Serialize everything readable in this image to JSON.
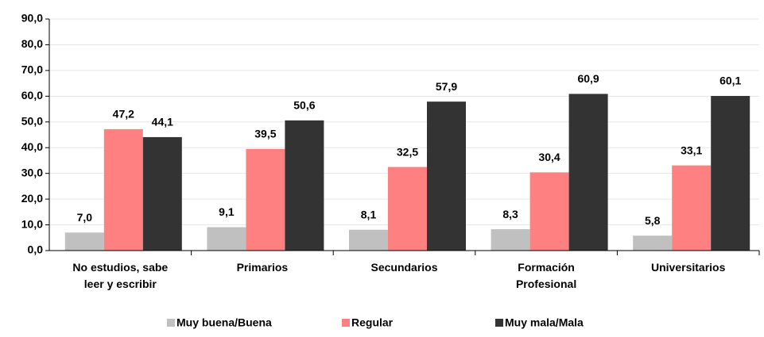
{
  "chart_data": {
    "type": "bar",
    "categories": [
      "No estudios, sabe leer y escribir",
      "Primarios",
      "Secundarios",
      "Formación Profesional",
      "Universitarios"
    ],
    "series": [
      {
        "name": "Muy buena/Buena",
        "color": "#c0c0c0",
        "values": [
          7.0,
          9.1,
          8.1,
          8.3,
          5.8
        ],
        "value_labels": [
          "7,0",
          "9,1",
          "8,1",
          "8,3",
          "5,8"
        ]
      },
      {
        "name": "Regular",
        "color": "#ff8080",
        "values": [
          47.2,
          39.5,
          32.5,
          30.4,
          33.1
        ],
        "value_labels": [
          "47,2",
          "39,5",
          "32,5",
          "30,4",
          "33,1"
        ]
      },
      {
        "name": "Muy mala/Mala",
        "color": "#333333",
        "values": [
          44.1,
          50.6,
          57.9,
          60.9,
          60.1
        ],
        "value_labels": [
          "44,1",
          "50,6",
          "57,9",
          "60,9",
          "60,1"
        ]
      }
    ],
    "ylim": [
      0,
      90
    ],
    "yticks": [
      {
        "value": 0,
        "label": "0,0"
      },
      {
        "value": 10,
        "label": "10,0"
      },
      {
        "value": 20,
        "label": "20,0"
      },
      {
        "value": 30,
        "label": "30,0"
      },
      {
        "value": 40,
        "label": "40,0"
      },
      {
        "value": 50,
        "label": "50,0"
      },
      {
        "value": 60,
        "label": "60,0"
      },
      {
        "value": 70,
        "label": "70,0"
      },
      {
        "value": 80,
        "label": "80,0"
      },
      {
        "value": 90,
        "label": "90,0"
      }
    ],
    "grid": true,
    "legend": "bottom"
  }
}
